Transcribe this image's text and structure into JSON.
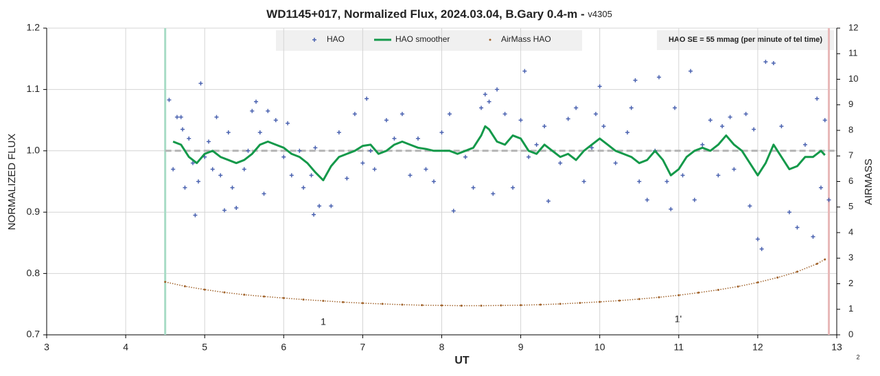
{
  "chart_data": {
    "type": "scatter",
    "title": "WD1145+017, Normalized Flux, 2024.03.04, B.Gary 0.4-m -",
    "title_suffix": "v4305",
    "x_label": "UT",
    "y_label": "NORMALIZED FLUX",
    "y2_label": "AIRMASS",
    "xlim": [
      3,
      13
    ],
    "xticks": [
      3,
      4,
      5,
      6,
      7,
      8,
      9,
      10,
      11,
      12,
      13
    ],
    "ylim": [
      0.7,
      1.2
    ],
    "yticks": [
      0.7,
      0.8,
      0.9,
      {
        "value": 1,
        "label": "1.0"
      },
      1.1,
      1.2
    ],
    "y2lim": [
      0,
      12
    ],
    "y2ticks": [
      0,
      1,
      2,
      3,
      4,
      5,
      6,
      7,
      8,
      9,
      10,
      11,
      12
    ],
    "grid": true,
    "legend": "top",
    "annotations": [
      "HAO SE = 55 mmag (per minute of tel time)",
      "1",
      "1'",
      "2"
    ],
    "vlines": [
      {
        "x": 4.5,
        "color": "#a8dcc6"
      },
      {
        "x": 12.9,
        "color": "#e8b8b8"
      }
    ],
    "hline": {
      "y": 1,
      "color": "#b4b4b4"
    },
    "series": [
      {
        "name": "HAO",
        "kind": "scatter",
        "color": "#4a62b0",
        "x": [
          4.55,
          4.6,
          4.65,
          4.7,
          4.72,
          4.75,
          4.8,
          4.85,
          4.88,
          4.92,
          4.95,
          5.0,
          5.05,
          5.1,
          5.15,
          5.2,
          5.25,
          5.3,
          5.35,
          5.4,
          5.5,
          5.55,
          5.6,
          5.65,
          5.7,
          5.75,
          5.8,
          5.9,
          6.0,
          6.05,
          6.1,
          6.2,
          6.25,
          6.35,
          6.38,
          6.4,
          6.45,
          6.6,
          6.7,
          6.8,
          6.9,
          7.0,
          7.05,
          7.1,
          7.15,
          7.3,
          7.4,
          7.5,
          7.6,
          7.7,
          7.8,
          7.9,
          8.0,
          8.1,
          8.15,
          8.3,
          8.4,
          8.5,
          8.55,
          8.6,
          8.65,
          8.7,
          8.8,
          8.9,
          9.0,
          9.05,
          9.1,
          9.2,
          9.3,
          9.35,
          9.5,
          9.6,
          9.7,
          9.8,
          9.9,
          9.95,
          10.0,
          10.05,
          10.2,
          10.35,
          10.4,
          10.45,
          10.5,
          10.6,
          10.7,
          10.75,
          10.85,
          10.9,
          10.95,
          11.05,
          11.15,
          11.2,
          11.3,
          11.4,
          11.5,
          11.55,
          11.65,
          11.7,
          11.85,
          11.9,
          11.95,
          12.0,
          12.05,
          12.1,
          12.2,
          12.3,
          12.4,
          12.5,
          12.6,
          12.7,
          12.75,
          12.8,
          12.85,
          12.9
        ],
        "values": [
          1.083,
          0.97,
          1.055,
          1.055,
          1.035,
          0.94,
          1.02,
          0.98,
          0.895,
          0.95,
          1.11,
          0.99,
          1.015,
          0.97,
          1.055,
          0.96,
          0.903,
          1.03,
          0.94,
          0.907,
          0.97,
          1.0,
          1.065,
          1.08,
          1.03,
          0.93,
          1.065,
          1.05,
          0.99,
          1.045,
          0.96,
          1.0,
          0.94,
          0.96,
          0.896,
          1.005,
          0.91,
          0.91,
          1.03,
          0.955,
          1.06,
          0.98,
          1.085,
          1.0,
          0.97,
          1.05,
          1.02,
          1.06,
          0.96,
          1.02,
          0.97,
          0.95,
          1.03,
          1.06,
          0.902,
          0.99,
          0.94,
          1.07,
          1.092,
          1.08,
          0.93,
          1.1,
          1.06,
          0.94,
          1.05,
          1.13,
          0.99,
          1.01,
          1.04,
          0.918,
          0.98,
          1.052,
          1.07,
          0.95,
          1.005,
          1.06,
          1.105,
          1.04,
          0.98,
          1.03,
          1.07,
          1.115,
          0.95,
          0.92,
          1.0,
          1.12,
          0.95,
          0.905,
          1.07,
          0.96,
          1.13,
          0.92,
          1.01,
          1.05,
          0.96,
          1.04,
          1.055,
          0.97,
          1.06,
          0.91,
          1.035,
          0.856,
          0.84,
          1.145,
          1.143,
          1.04,
          0.9,
          0.875,
          1.01,
          0.86,
          1.085,
          0.94,
          1.05,
          0.92
        ]
      },
      {
        "name": "HAO smoother",
        "kind": "line",
        "color": "#14994a",
        "x": [
          4.6,
          4.7,
          4.8,
          4.9,
          5.0,
          5.1,
          5.2,
          5.3,
          5.4,
          5.5,
          5.6,
          5.7,
          5.8,
          5.9,
          6.0,
          6.1,
          6.2,
          6.3,
          6.4,
          6.5,
          6.6,
          6.7,
          6.8,
          6.9,
          7.0,
          7.1,
          7.2,
          7.3,
          7.4,
          7.5,
          7.6,
          7.7,
          7.8,
          7.9,
          8.0,
          8.1,
          8.2,
          8.3,
          8.4,
          8.5,
          8.55,
          8.6,
          8.7,
          8.8,
          8.9,
          9.0,
          9.1,
          9.2,
          9.3,
          9.4,
          9.5,
          9.6,
          9.7,
          9.8,
          9.9,
          10.0,
          10.1,
          10.2,
          10.3,
          10.4,
          10.5,
          10.6,
          10.7,
          10.8,
          10.9,
          11.0,
          11.1,
          11.2,
          11.3,
          11.4,
          11.5,
          11.6,
          11.7,
          11.8,
          11.9,
          12.0,
          12.1,
          12.2,
          12.3,
          12.4,
          12.5,
          12.6,
          12.7,
          12.8,
          12.85
        ],
        "values": [
          1.015,
          1.01,
          0.99,
          0.98,
          0.995,
          1.0,
          0.99,
          0.985,
          0.98,
          0.985,
          0.995,
          1.01,
          1.015,
          1.01,
          1.005,
          0.995,
          0.99,
          0.98,
          0.965,
          0.952,
          0.975,
          0.99,
          0.995,
          1.0,
          1.008,
          1.01,
          0.995,
          1.0,
          1.01,
          1.015,
          1.01,
          1.005,
          1.003,
          1.0,
          1.0,
          1.0,
          0.995,
          1.0,
          1.005,
          1.025,
          1.04,
          1.035,
          1.015,
          1.01,
          1.025,
          1.02,
          1.0,
          0.995,
          1.01,
          1.0,
          0.99,
          0.995,
          0.985,
          1.0,
          1.01,
          1.02,
          1.01,
          1.0,
          0.995,
          0.99,
          0.98,
          0.985,
          1.0,
          0.985,
          0.96,
          0.97,
          0.99,
          1.0,
          1.005,
          1.0,
          1.01,
          1.025,
          1.01,
          1.0,
          0.98,
          0.96,
          0.98,
          1.01,
          0.99,
          0.97,
          0.975,
          0.99,
          0.99,
          1.0,
          0.993
        ]
      },
      {
        "name": "AirMass HAO",
        "kind": "dots",
        "axis": "y2",
        "color": "#a0622a",
        "x": [
          4.5,
          4.75,
          5.0,
          5.25,
          5.5,
          5.75,
          6.0,
          6.25,
          6.5,
          6.75,
          7.0,
          7.25,
          7.5,
          7.75,
          8.0,
          8.25,
          8.5,
          8.75,
          9.0,
          9.25,
          9.5,
          9.75,
          10.0,
          10.25,
          10.5,
          10.75,
          11.0,
          11.25,
          11.5,
          11.75,
          12.0,
          12.25,
          12.5,
          12.75,
          12.85
        ],
        "values": [
          2.07,
          1.9,
          1.77,
          1.66,
          1.57,
          1.5,
          1.44,
          1.38,
          1.33,
          1.28,
          1.24,
          1.21,
          1.18,
          1.16,
          1.15,
          1.14,
          1.14,
          1.15,
          1.16,
          1.18,
          1.21,
          1.25,
          1.29,
          1.34,
          1.4,
          1.47,
          1.55,
          1.65,
          1.76,
          1.89,
          2.05,
          2.24,
          2.47,
          2.78,
          2.95
        ]
      }
    ]
  }
}
